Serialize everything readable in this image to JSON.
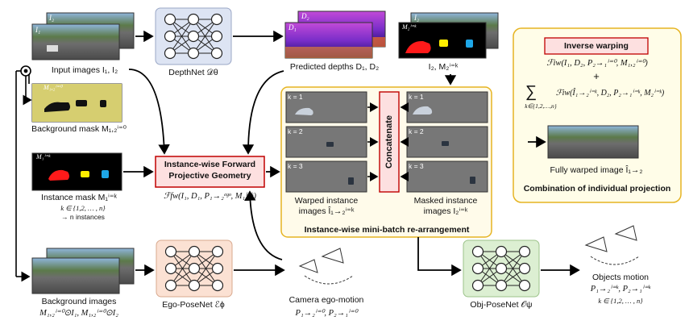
{
  "inputs": {
    "input_images": "Input images I₁, I₂",
    "input_tag_1": "I₁",
    "input_tag_2": "I₂",
    "background_mask": "Background mask M₁,₂ⁱ⁼⁰",
    "background_mask_tag": "M₁,₂ⁱ⁼⁰",
    "instance_mask": "Instance mask M₁ⁱ⁼ᵏ",
    "instance_mask_tag": "M₁ⁱ⁼ᵏ",
    "instance_range": "k ∈ {1,2, … , n}",
    "instance_count": "→ n instances",
    "background_images_title": "Background images",
    "background_images_formula": "M₁,₂ⁱ⁼⁰⊙I₁, M₁,₂ⁱ⁼⁰⊙I₂"
  },
  "networks": {
    "depthnet": "DepthNet 𝒟θ",
    "ego_posenet": "Ego-PoseNet ℰϕ",
    "obj_posenet": "Obj-PoseNet 𝒪ψ"
  },
  "depth": {
    "label": "Predicted depths D₁, D₂",
    "tag_1": "D₁",
    "tag_2": "D₂"
  },
  "masked": {
    "label": "I₂, M₂ⁱ⁼ᵏ",
    "tag_1": "M₂ⁱ⁼ᵏ",
    "tag_2": "I₂"
  },
  "forward": {
    "title_line1": "Instance-wise Forward",
    "title_line2": "Projective Geometry",
    "formula": "ℱfw(I₁, D₁, P₁→₂ᵉᵍᵒ, M₁ⁱ⁼ᵏ)"
  },
  "minibatch": {
    "title": "Instance-wise mini-batch re-arrangement",
    "concatenate": "Concatenate",
    "warped_label_1": "Warped instance",
    "warped_label_2": "images Î₁→₂ⁱ⁼ᵏ",
    "masked_label_1": "Masked instance",
    "masked_label_2": "images I₂ⁱ⁼ᵏ",
    "tags": [
      "k = 1",
      "k = 2",
      "k = 3"
    ]
  },
  "ego_motion": {
    "label": "Camera ego-motion",
    "formula": "P₁→₂ⁱ⁼⁰, P₂→₁ⁱ⁼⁰"
  },
  "objects_motion": {
    "label": "Objects motion",
    "formula": "P₁→₂ⁱ⁼ᵏ, P₂→₁ⁱ⁼ᵏ",
    "range": "k ∈ {1,2, … , n}"
  },
  "inverse": {
    "title": "Inverse warping",
    "formula_1": "ℱiw(I₁, D₂, P₂→₁ⁱ⁼⁰, M₁,₂ⁱ⁼⁰)",
    "plus": "+",
    "sum_symbol": "∑",
    "sum_range": "k∈{1,2,…,n}",
    "formula_2": "ℱiw(Î₁→₂ⁱ⁼ᵏ, D₂, P₂→₁ⁱ⁼ᵏ, M₂ⁱ⁼ᵏ)",
    "warped_label": "Fully warped image Î₁→₂",
    "caption": "Combination of individual projection"
  },
  "colors": {
    "depthnet_fill": "#dde4f3",
    "posenet_fill": "#fbe1d3",
    "objnet_fill": "#dcefd2",
    "minibatch_border": "#e6b422",
    "minibatch_fill": "#fffbea",
    "forward_border": "#c00000",
    "forward_fill": "#fde0e0",
    "inverse_border": "#e6b422"
  }
}
